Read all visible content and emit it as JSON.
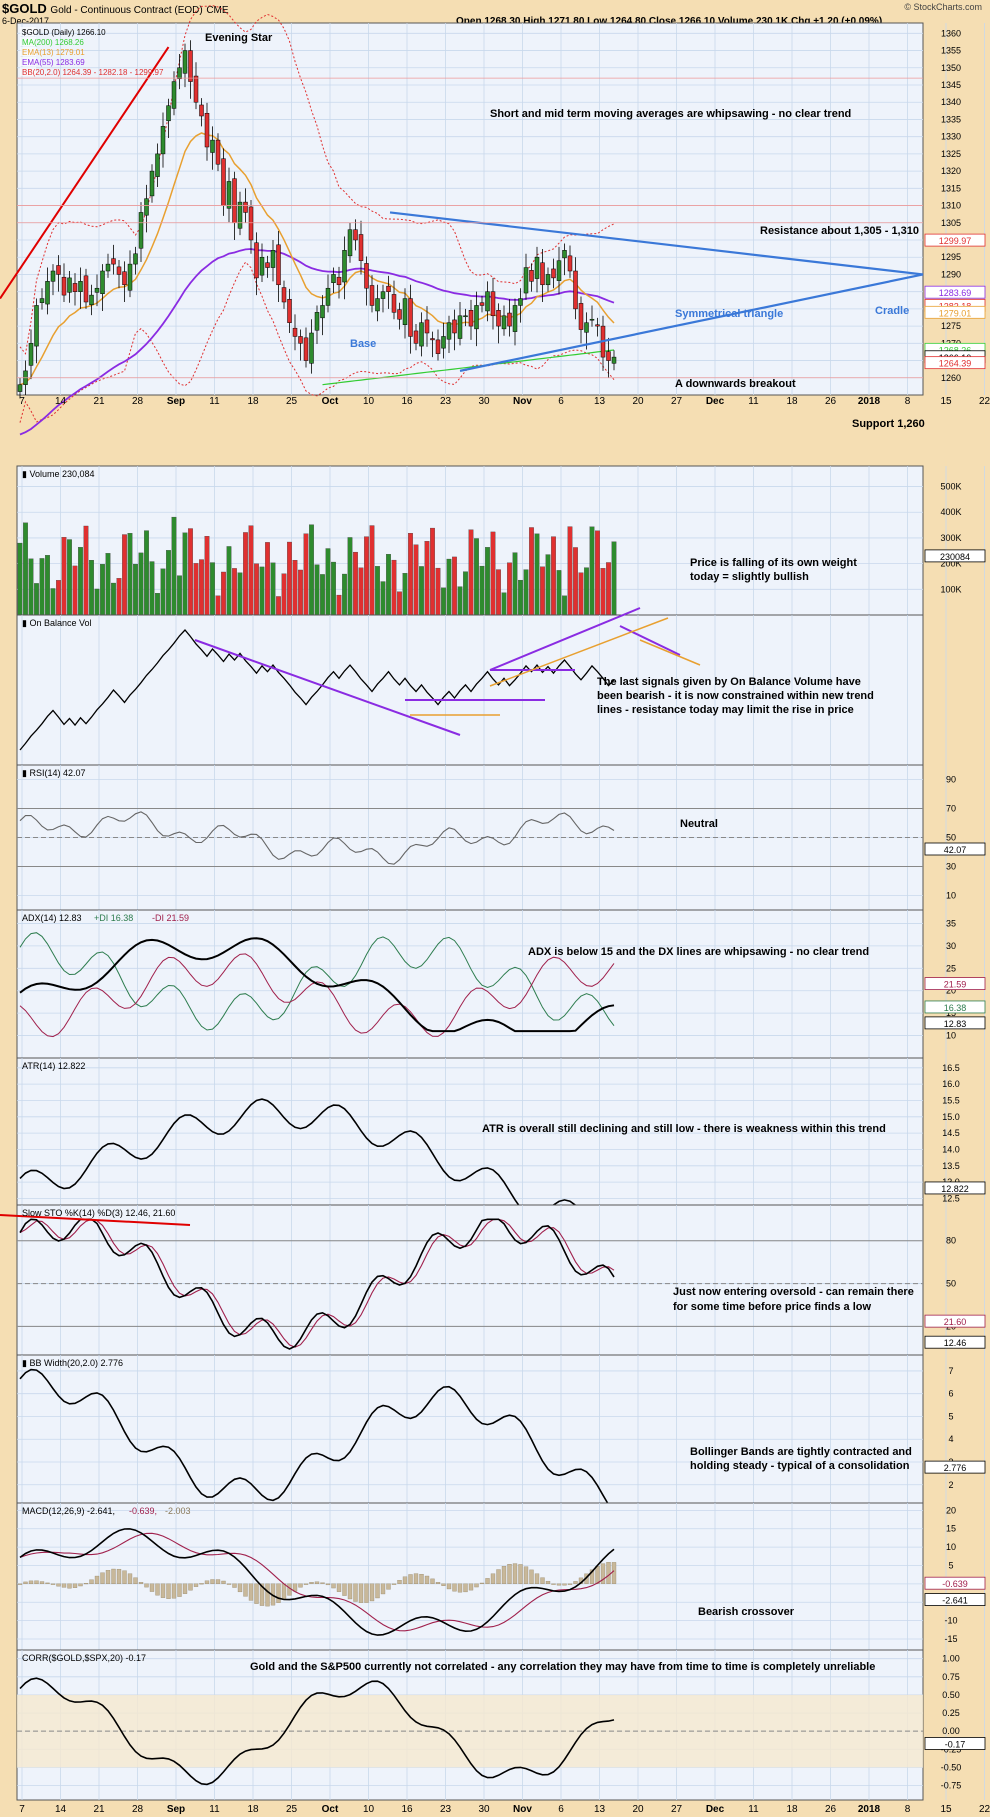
{
  "header": {
    "symbol": "$GOLD",
    "name": "Gold - Continuous Contract (EOD)",
    "exchange": "CME",
    "date": "6-Dec-2017",
    "ohlc": "Open 1268.30  High 1271.80  Low 1264.80  Close 1266.10  Volume 230.1K  Chg +1.20 (+0.09%)",
    "watermark": "© StockCharts.com"
  },
  "colors": {
    "up": "#2e8b2e",
    "down": "#e03030",
    "ema13": "#e8a030",
    "ema55": "#8a2be2",
    "ma200": "#33cc33",
    "bb": "#e03030",
    "trend": "#3a78d8",
    "grid": "#c8d8ec",
    "panel": "#eef3fb"
  },
  "x_axis": {
    "labels": [
      "7",
      "14",
      "21",
      "28",
      "Sep",
      "11",
      "18",
      "25",
      "Oct",
      "10",
      "16",
      "23",
      "30",
      "Nov",
      "6",
      "13",
      "20",
      "27",
      "Dec",
      "11",
      "18",
      "26",
      "2018",
      "8",
      "15",
      "22"
    ]
  },
  "price_panel": {
    "legend": [
      "$GOLD (Daily) 1266.10",
      "MA(200) 1268.26",
      "EMA(13) 1279.01",
      "EMA(55) 1283.69",
      "BB(20,2.0) 1264.39 - 1282.18 - 1299.97"
    ],
    "y_ticks": [
      "1360",
      "1355",
      "1350",
      "1345",
      "1340",
      "1335",
      "1330",
      "1325",
      "1320",
      "1315",
      "1310",
      "1305",
      "1300",
      "1295",
      "1290",
      "1285",
      "1280",
      "1275",
      "1270",
      "1265",
      "1260"
    ],
    "value_tags": [
      "1299.97",
      "1283.69",
      "1282.18",
      "1279.01",
      "1268.26",
      "1266.10",
      "1264.39"
    ],
    "annotations": {
      "evening_star": "Evening Star",
      "whipsaw": "Short and mid term moving averages are whipsawing - no clear trend",
      "resistance": "Resistance about 1,305 - 1,310",
      "triangle": "Symmetrical triangle",
      "cradle": "Cradle",
      "base": "Base",
      "breakout": "A downwards breakout",
      "support": "Support 1,260"
    }
  },
  "volume_panel": {
    "legend": "Volume 230,084",
    "y_ticks": [
      "500K",
      "400K",
      "300K",
      "200K",
      "100K"
    ],
    "value_tag": "230084",
    "note1": "Price is falling of its own weight",
    "note2": "today = slightly bullish"
  },
  "obv_panel": {
    "legend": "On Balance Vol",
    "note1": "The last signals given by On Balance Volume have",
    "note2": "been bearish - it is now constrained within new trend",
    "note3": "lines - resistance today may limit the rise in price"
  },
  "rsi_panel": {
    "legend": "RSI(14) 42.07",
    "y_ticks": [
      "90",
      "70",
      "50",
      "30",
      "10"
    ],
    "value_tag": "42.07",
    "note": "Neutral"
  },
  "adx_panel": {
    "legend_adx": "ADX(14) 12.83",
    "legend_pdi": "+DI 16.38",
    "legend_mdi": "-DI 21.59",
    "y_ticks": [
      "35",
      "30",
      "25",
      "20",
      "15",
      "10"
    ],
    "value_tags": [
      "21.59",
      "16.38",
      "12.83"
    ],
    "note": "ADX is below 15 and the DX lines are whipsawing - no clear trend"
  },
  "atr_panel": {
    "legend": "ATR(14) 12.822",
    "y_ticks": [
      "16.5",
      "16.0",
      "15.5",
      "15.0",
      "14.5",
      "14.0",
      "13.5",
      "13.0",
      "12.5"
    ],
    "value_tag": "12.822",
    "note": "ATR is overall still declining and still low - there is weakness within this trend"
  },
  "sto_panel": {
    "legend": "Slow STO %K(14) %D(3) 12.46, 21.60",
    "y_ticks": [
      "80",
      "50",
      "20"
    ],
    "value_tags": [
      "21.60",
      "12.46"
    ],
    "note1": "Just now entering oversold - can remain there",
    "note2": "for some time before price finds a low"
  },
  "bbw_panel": {
    "legend": "BB Width(20,2.0) 2.776",
    "y_ticks": [
      "7",
      "6",
      "5",
      "4",
      "3",
      "2"
    ],
    "value_tag": "2.776",
    "note1": "Bollinger Bands are tightly contracted and",
    "note2": "holding steady - typical of a consolidation"
  },
  "macd_panel": {
    "legend_main": "MACD(12,26,9) -2.641,",
    "legend_signal": "-0.639,",
    "legend_hist": "-2.003",
    "y_ticks": [
      "20",
      "15",
      "10",
      "5",
      "0",
      "-5",
      "-10",
      "-15"
    ],
    "value_tags": [
      "-0.639",
      "-2.641"
    ],
    "note": "Bearish crossover"
  },
  "corr_panel": {
    "legend": "CORR($GOLD,$SPX,20) -0.17",
    "y_ticks": [
      "1.00",
      "0.75",
      "0.50",
      "0.25",
      "0.00",
      "-0.25",
      "-0.50",
      "-0.75"
    ],
    "value_tag": "-0.17",
    "note": "Gold and the S&P500 currently not correlated - any correlation they may have from time to time is completely unreliable"
  },
  "chart_data": {
    "type": "candlestick",
    "title": "$GOLD (Daily) 1266.10",
    "ylim": [
      1255,
      1363
    ],
    "dates": [
      "2017-08-04",
      "2017-12-06"
    ],
    "close_series": [
      1258,
      1262,
      1270,
      1281,
      1283,
      1288,
      1291,
      1290,
      1284,
      1289,
      1285,
      1288,
      1282,
      1284,
      1286,
      1291,
      1293,
      1293,
      1290,
      1287,
      1293,
      1296,
      1308,
      1312,
      1320,
      1325,
      1333,
      1339,
      1346,
      1350,
      1355,
      1346,
      1340,
      1336,
      1327,
      1329,
      1322,
      1310,
      1317,
      1305,
      1311,
      1308,
      1300,
      1289,
      1295,
      1292,
      1297,
      1287,
      1282,
      1276,
      1272,
      1270,
      1265,
      1273,
      1279,
      1281,
      1286,
      1290,
      1287,
      1297,
      1303,
      1300,
      1294,
      1286,
      1281,
      1283,
      1285,
      1285,
      1279,
      1277,
      1283,
      1272,
      1270,
      1276,
      1273,
      1271,
      1267,
      1272,
      1276,
      1273,
      1278,
      1278,
      1275,
      1281,
      1281,
      1285,
      1278,
      1275,
      1278,
      1275,
      1281,
      1283,
      1292,
      1288,
      1295,
      1287,
      1290,
      1289,
      1294,
      1297,
      1291,
      1280,
      1274,
      1276,
      1277,
      1275,
      1266,
      1265,
      1266
    ],
    "series": [
      {
        "name": "MA(200)",
        "last": 1268.26
      },
      {
        "name": "EMA(13)",
        "last": 1279.01
      },
      {
        "name": "EMA(55)",
        "last": 1283.69
      },
      {
        "name": "BB(20,2.0)",
        "last": [
          1264.39,
          1282.18,
          1299.97
        ]
      }
    ]
  }
}
